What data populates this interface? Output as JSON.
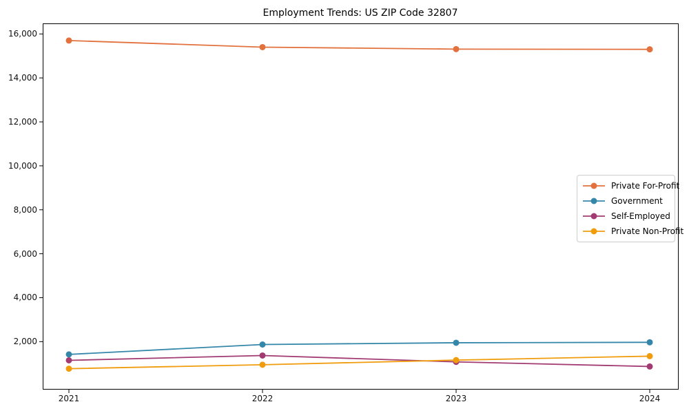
{
  "figure": {
    "background_color": "#ffffff",
    "spine_color": "#000000",
    "tick_color": "#000000",
    "tick_label_color": "#111111",
    "legend_border_color": "#cccccc"
  },
  "chart_data": {
    "type": "line",
    "title": "Employment Trends: US ZIP Code 32807",
    "xlabel": "",
    "ylabel": "",
    "x": [
      "2021",
      "2022",
      "2023",
      "2024"
    ],
    "series": [
      {
        "name": "Private For-Profit",
        "color": "#e2713d",
        "values": [
          15700,
          15400,
          15310,
          15300
        ]
      },
      {
        "name": "Government",
        "color": "#3487a9",
        "values": [
          1420,
          1870,
          1950,
          1970
        ]
      },
      {
        "name": "Self-Employed",
        "color": "#a23b72",
        "values": [
          1150,
          1370,
          1080,
          870
        ]
      },
      {
        "name": "Private Non-Profit",
        "color": "#f09c0d",
        "values": [
          770,
          950,
          1160,
          1340
        ]
      }
    ],
    "y_ticks": [
      2000,
      4000,
      6000,
      8000,
      10000,
      12000,
      14000,
      16000
    ],
    "y_tick_labels": [
      "2,000",
      "4,000",
      "6,000",
      "8,000",
      "10,000",
      "12,000",
      "14,000",
      "16,000"
    ],
    "ylim": [
      -150,
      16480
    ],
    "grid": false,
    "legend_position": "center-right",
    "marker": "circle",
    "marker_radius": 4.5,
    "line_width": 1.8
  }
}
